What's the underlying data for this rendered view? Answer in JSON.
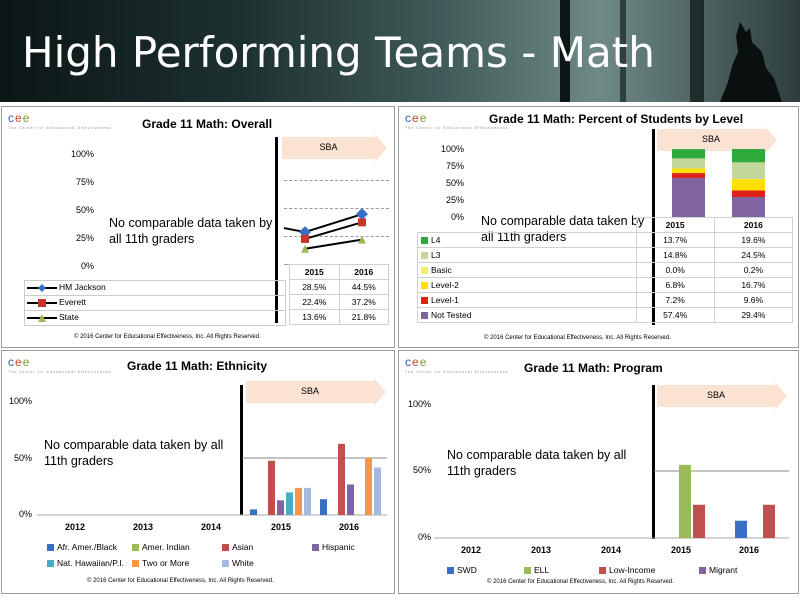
{
  "banner": {
    "title": "High Performing Teams - Math"
  },
  "logo": {
    "text": "cee",
    "subtitle": "The Center for Educational Effectiveness"
  },
  "copyright": "© 2016 Center for Educational Effectiveness, Inc. All Rights Reserved.",
  "sba_label": "SBA",
  "no_data_text": "No comparable data taken by all 11th graders",
  "colors": {
    "hm_jackson": "#3b6fc4",
    "everett": "#c0392b",
    "state": "#9bbb59",
    "l4": "#2eaa3d",
    "l3": "#c4d79b",
    "basic": "#f3f06c",
    "level2": "#ffe000",
    "level1": "#e0201a",
    "not_tested": "#8064a2"
  },
  "panels": {
    "overall": {
      "title": "Grade 11 Math: Overall",
      "y_ticks": [
        "100%",
        "75%",
        "50%",
        "25%",
        "0%"
      ],
      "years": [
        "2015",
        "2016"
      ],
      "rows": [
        {
          "name": "HM Jackson",
          "values": [
            "28.5%",
            "44.5%"
          ]
        },
        {
          "name": "Everett",
          "values": [
            "22.4%",
            "37.2%"
          ]
        },
        {
          "name": "State",
          "values": [
            "13.6%",
            "21.8%"
          ]
        }
      ]
    },
    "level": {
      "title": "Grade 11 Math: Percent of Students by Level",
      "y_ticks": [
        "100%",
        "75%",
        "50%",
        "25%",
        "0%"
      ],
      "years": [
        "2015",
        "2016"
      ],
      "rows": [
        {
          "name": "L4",
          "values": [
            "13.7%",
            "19.6%"
          ]
        },
        {
          "name": "L3",
          "values": [
            "14.8%",
            "24.5%"
          ]
        },
        {
          "name": "Basic",
          "values": [
            "0.0%",
            "0.2%"
          ]
        },
        {
          "name": "Level-2",
          "values": [
            "6.8%",
            "16.7%"
          ]
        },
        {
          "name": "Level-1",
          "values": [
            "7.2%",
            "9.6%"
          ]
        },
        {
          "name": "Not Tested",
          "values": [
            "57.4%",
            "29.4%"
          ]
        }
      ]
    },
    "ethnicity": {
      "title": "Grade 11 Math: Ethnicity",
      "y_ticks": [
        "100%",
        "50%",
        "0%"
      ],
      "x_labels": [
        "2012",
        "2013",
        "2014",
        "2015",
        "2016"
      ],
      "legend": [
        "Afr. Amer./Black",
        "Amer. Indian",
        "Asian",
        "Hispanic",
        "Nat. Hawaiian/P.I.",
        "Two or More",
        "White"
      ]
    },
    "program": {
      "title": "Grade 11 Math: Program",
      "y_ticks": [
        "100%",
        "50%",
        "0%"
      ],
      "x_labels": [
        "2012",
        "2013",
        "2014",
        "2015",
        "2016"
      ],
      "legend": [
        "SWD",
        "ELL",
        "Low-Income",
        "Migrant"
      ]
    }
  },
  "chart_data": [
    {
      "type": "line",
      "title": "Grade 11 Math: Overall",
      "x": [
        "2015",
        "2016"
      ],
      "ylim": [
        0,
        100
      ],
      "series": [
        {
          "name": "HM Jackson",
          "values": [
            28.5,
            44.5
          ]
        },
        {
          "name": "Everett",
          "values": [
            22.4,
            37.2
          ]
        },
        {
          "name": "State",
          "values": [
            13.6,
            21.8
          ]
        }
      ]
    },
    {
      "type": "bar",
      "stacked": true,
      "title": "Grade 11 Math: Percent of Students by Level",
      "categories": [
        "2015",
        "2016"
      ],
      "ylim": [
        0,
        100
      ],
      "series": [
        {
          "name": "Not Tested",
          "values": [
            57.4,
            29.4
          ]
        },
        {
          "name": "Level-1",
          "values": [
            7.2,
            9.6
          ]
        },
        {
          "name": "Level-2",
          "values": [
            6.8,
            16.7
          ]
        },
        {
          "name": "Basic",
          "values": [
            0.0,
            0.2
          ]
        },
        {
          "name": "L3",
          "values": [
            14.8,
            24.5
          ]
        },
        {
          "name": "L4",
          "values": [
            13.7,
            19.6
          ]
        }
      ]
    },
    {
      "type": "bar",
      "title": "Grade 11 Math: Ethnicity",
      "categories": [
        "2015",
        "2016"
      ],
      "ylim": [
        0,
        100
      ],
      "series": [
        {
          "name": "Afr. Amer./Black",
          "values": [
            5,
            14
          ]
        },
        {
          "name": "Amer. Indian",
          "values": [
            0,
            0
          ]
        },
        {
          "name": "Asian",
          "values": [
            48,
            63
          ]
        },
        {
          "name": "Hispanic",
          "values": [
            13,
            27
          ]
        },
        {
          "name": "Nat. Hawaiian/P.I.",
          "values": [
            20,
            0
          ]
        },
        {
          "name": "Two or More",
          "values": [
            24,
            51
          ]
        },
        {
          "name": "White",
          "values": [
            24,
            42
          ]
        }
      ]
    },
    {
      "type": "bar",
      "title": "Grade 11 Math: Program",
      "categories": [
        "2015",
        "2016"
      ],
      "ylim": [
        0,
        100
      ],
      "series": [
        {
          "name": "SWD",
          "values": [
            0,
            13
          ]
        },
        {
          "name": "ELL",
          "values": [
            55,
            0
          ]
        },
        {
          "name": "Low-Income",
          "values": [
            25,
            25
          ]
        },
        {
          "name": "Migrant",
          "values": [
            0,
            0
          ]
        }
      ]
    }
  ]
}
